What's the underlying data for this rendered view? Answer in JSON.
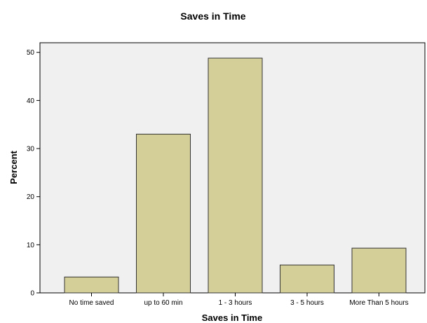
{
  "chart_data": {
    "type": "bar",
    "title": "Saves in Time",
    "xlabel": "Saves in Time",
    "ylabel": "Percent",
    "categories": [
      "No time saved",
      "up to 60 min",
      "1 - 3 hours",
      "3 - 5 hours",
      "More Than 5 hours"
    ],
    "values": [
      3.3,
      33.0,
      48.8,
      5.8,
      9.3
    ],
    "ylim": [
      0,
      52
    ],
    "yticks": [
      0,
      10,
      20,
      30,
      40,
      50
    ],
    "grid": false,
    "legend": "none",
    "colors": {
      "bar_fill": "#d4cf98",
      "bar_stroke": "#333333",
      "plot_background": "#f0f0f0"
    }
  }
}
